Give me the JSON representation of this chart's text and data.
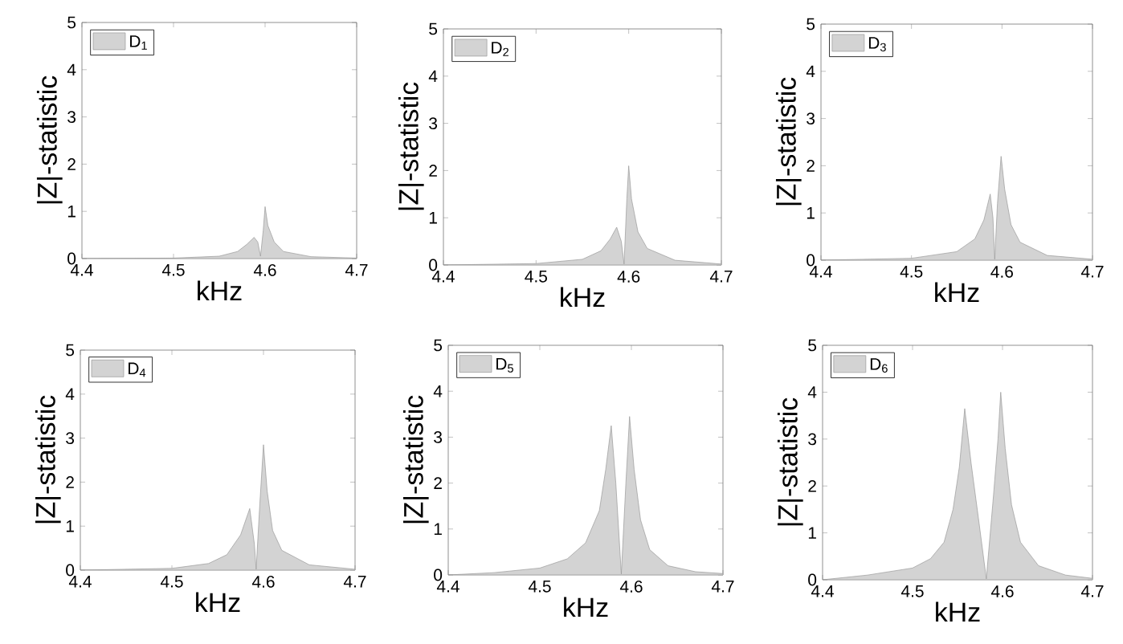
{
  "chart_data": [
    {
      "type": "area",
      "xlabel": "kHz",
      "ylabel": "|Z|-statistic",
      "xlim": [
        4.4,
        4.7
      ],
      "ylim": [
        0,
        5
      ],
      "xticks": [
        4.4,
        4.5,
        4.6,
        4.7
      ],
      "yticks": [
        0,
        1,
        2,
        3,
        4,
        5
      ],
      "legend": "top left",
      "series": [
        {
          "name": "D$_{1}$",
          "color": "#d3d3d3",
          "x": [
            4.4,
            4.5,
            4.55,
            4.57,
            4.58,
            4.588,
            4.592,
            4.595,
            4.598,
            4.6,
            4.603,
            4.61,
            4.62,
            4.65,
            4.7
          ],
          "values": [
            0,
            0.01,
            0.05,
            0.15,
            0.3,
            0.45,
            0.35,
            0.05,
            0.6,
            1.1,
            0.7,
            0.35,
            0.15,
            0.04,
            0.01
          ]
        }
      ]
    },
    {
      "type": "area",
      "xlabel": "kHz",
      "ylabel": "|Z|-statistic",
      "xlim": [
        4.4,
        4.7
      ],
      "ylim": [
        0,
        5
      ],
      "xticks": [
        4.4,
        4.5,
        4.6,
        4.7
      ],
      "yticks": [
        0,
        1,
        2,
        3,
        4,
        5
      ],
      "legend": "top left",
      "series": [
        {
          "name": "D$_{2}$",
          "color": "#d3d3d3",
          "x": [
            4.4,
            4.5,
            4.55,
            4.57,
            4.58,
            4.587,
            4.592,
            4.595,
            4.598,
            4.6,
            4.603,
            4.61,
            4.62,
            4.65,
            4.7
          ],
          "values": [
            0,
            0.03,
            0.12,
            0.3,
            0.55,
            0.8,
            0.5,
            0.02,
            1.4,
            2.1,
            1.4,
            0.7,
            0.35,
            0.1,
            0.02
          ]
        }
      ]
    },
    {
      "type": "area",
      "xlabel": "kHz",
      "ylabel": "|Z|-statistic",
      "xlim": [
        4.4,
        4.7
      ],
      "ylim": [
        0,
        5
      ],
      "xticks": [
        4.4,
        4.5,
        4.6,
        4.7
      ],
      "yticks": [
        0,
        1,
        2,
        3,
        4,
        5
      ],
      "legend": "top left",
      "series": [
        {
          "name": "D$_{3}$",
          "color": "#d3d3d3",
          "x": [
            4.4,
            4.5,
            4.55,
            4.57,
            4.58,
            4.587,
            4.59,
            4.592,
            4.595,
            4.599,
            4.603,
            4.61,
            4.62,
            4.65,
            4.7
          ],
          "values": [
            0,
            0.04,
            0.18,
            0.45,
            0.85,
            1.4,
            0.9,
            0.02,
            1.2,
            2.2,
            1.5,
            0.75,
            0.38,
            0.1,
            0.02
          ]
        }
      ]
    },
    {
      "type": "area",
      "xlabel": "kHz",
      "ylabel": "|Z|-statistic",
      "xlim": [
        4.4,
        4.7
      ],
      "ylim": [
        0,
        5
      ],
      "xticks": [
        4.4,
        4.5,
        4.6,
        4.7
      ],
      "yticks": [
        0,
        1,
        2,
        3,
        4,
        5
      ],
      "legend": "top left",
      "series": [
        {
          "name": "D$_{4}$",
          "color": "#d3d3d3",
          "x": [
            4.4,
            4.5,
            4.54,
            4.56,
            4.575,
            4.585,
            4.59,
            4.592,
            4.596,
            4.6,
            4.604,
            4.61,
            4.62,
            4.65,
            4.7
          ],
          "values": [
            0,
            0.04,
            0.15,
            0.35,
            0.8,
            1.4,
            0.6,
            0.02,
            1.5,
            2.85,
            1.8,
            0.9,
            0.45,
            0.12,
            0.02
          ]
        }
      ]
    },
    {
      "type": "area",
      "xlabel": "kHz",
      "ylabel": "|Z|-statistic",
      "xlim": [
        4.4,
        4.7
      ],
      "ylim": [
        0,
        5
      ],
      "xticks": [
        4.4,
        4.5,
        4.6,
        4.7
      ],
      "yticks": [
        0,
        1,
        2,
        3,
        4,
        5
      ],
      "legend": "top left",
      "series": [
        {
          "name": "D$_{5}$",
          "color": "#d3d3d3",
          "x": [
            4.4,
            4.45,
            4.5,
            4.53,
            4.55,
            4.565,
            4.572,
            4.578,
            4.583,
            4.589,
            4.594,
            4.598,
            4.603,
            4.61,
            4.62,
            4.64,
            4.67,
            4.7
          ],
          "values": [
            0,
            0.05,
            0.15,
            0.35,
            0.7,
            1.4,
            2.3,
            3.25,
            2.0,
            0.02,
            2.0,
            3.45,
            2.3,
            1.2,
            0.55,
            0.2,
            0.07,
            0.03
          ]
        }
      ]
    },
    {
      "type": "area",
      "xlabel": "kHz",
      "ylabel": "|Z|-statistic",
      "xlim": [
        4.4,
        4.7
      ],
      "ylim": [
        0,
        5
      ],
      "xticks": [
        4.4,
        4.5,
        4.6,
        4.7
      ],
      "yticks": [
        0,
        1,
        2,
        3,
        4,
        5
      ],
      "legend": "top left",
      "series": [
        {
          "name": "D$_{6}$",
          "color": "#d3d3d3",
          "x": [
            4.4,
            4.45,
            4.5,
            4.52,
            4.535,
            4.545,
            4.552,
            4.558,
            4.565,
            4.574,
            4.582,
            4.59,
            4.595,
            4.598,
            4.603,
            4.61,
            4.62,
            4.64,
            4.67,
            4.7
          ],
          "values": [
            0,
            0.1,
            0.25,
            0.45,
            0.8,
            1.5,
            2.4,
            3.65,
            2.5,
            1.2,
            0.02,
            1.8,
            3.0,
            4.0,
            2.8,
            1.6,
            0.8,
            0.3,
            0.1,
            0.03
          ]
        }
      ]
    }
  ]
}
